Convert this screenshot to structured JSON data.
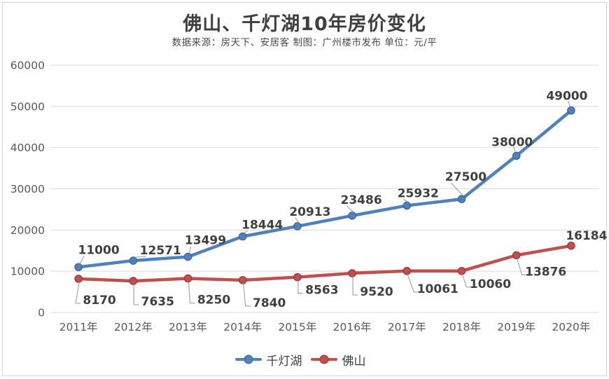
{
  "header": {
    "title": "佛山、千灯湖10年房价变化",
    "subtitle": "数据来源：房天下、安居客  制图：广州楼市发布  单位：元/平"
  },
  "chart_data": {
    "type": "line",
    "title": "佛山、千灯湖10年房价变化",
    "categories": [
      "2011年",
      "2012年",
      "2013年",
      "2014年",
      "2015年",
      "2016年",
      "2017年",
      "2018年",
      "2019年",
      "2020年"
    ],
    "series": [
      {
        "name": "千灯湖",
        "color": "#4F81BD",
        "marker_stroke": "#3A6496",
        "values": [
          11000,
          12571,
          13499,
          18444,
          20913,
          23486,
          25932,
          27500,
          38000,
          49000
        ]
      },
      {
        "name": "佛山",
        "color": "#C0504D",
        "marker_stroke": "#953735",
        "values": [
          8170,
          7635,
          8250,
          7840,
          8563,
          9520,
          10061,
          10060,
          13876,
          16184
        ]
      }
    ],
    "ylim": [
      0,
      60000
    ],
    "yticks": [
      0,
      10000,
      20000,
      30000,
      40000,
      50000,
      60000
    ],
    "grid": true,
    "legend_position": "bottom",
    "unit": "元/平"
  },
  "colors": {
    "gridline": "#d9d9d9",
    "axis_text": "#595959",
    "data_label": "#404040",
    "leader_line": "#a6a6a6",
    "border": "#d4d4d4",
    "background": "#ffffff"
  }
}
